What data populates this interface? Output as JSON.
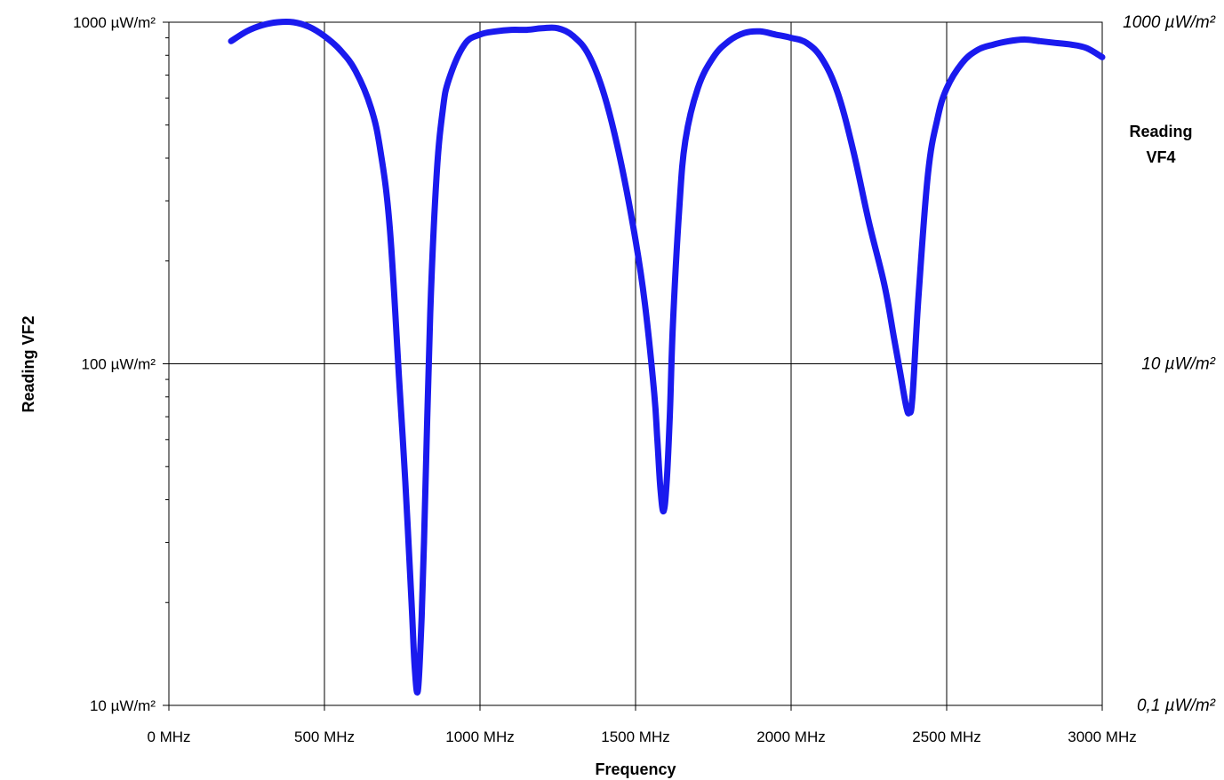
{
  "chart_data": {
    "type": "line",
    "xlabel": "Frequency",
    "ylabel": "Reading VF2",
    "ylabel_right": [
      "Reading",
      "VF4"
    ],
    "xlim": [
      0,
      3000
    ],
    "ylim": [
      10,
      1000
    ],
    "yscale": "log",
    "grid": true,
    "x_ticks": [
      {
        "value": 0,
        "label": "0 MHz"
      },
      {
        "value": 500,
        "label": "500 MHz"
      },
      {
        "value": 1000,
        "label": "1000 MHz"
      },
      {
        "value": 1500,
        "label": "1500 MHz"
      },
      {
        "value": 2000,
        "label": "2000 MHz"
      },
      {
        "value": 2500,
        "label": "2500 MHz"
      },
      {
        "value": 3000,
        "label": "3000 MHz"
      }
    ],
    "y_ticks_left": [
      {
        "value": 1000,
        "label": "1000 µW/m²"
      },
      {
        "value": 100,
        "label": "100 µW/m²"
      },
      {
        "value": 10,
        "label": "10 µW/m²"
      }
    ],
    "y_ticks_right": [
      {
        "value": 1000,
        "label": "1000 µW/m²"
      },
      {
        "value": 100,
        "label": "10 µW/m²"
      },
      {
        "value": 10,
        "label": "0,1 µW/m²"
      }
    ],
    "series_color": "#1a1aee",
    "series": [
      {
        "x": [
          200,
          250,
          300,
          350,
          400,
          450,
          500,
          550,
          600,
          650,
          680,
          710,
          740,
          760,
          780,
          790,
          800,
          810,
          820,
          840,
          860,
          880,
          900,
          950,
          1000,
          1050,
          1100,
          1150,
          1200,
          1250,
          1300,
          1350,
          1400,
          1450,
          1500,
          1530,
          1560,
          1570,
          1580,
          1590,
          1600,
          1610,
          1620,
          1640,
          1660,
          1700,
          1750,
          1800,
          1850,
          1900,
          1950,
          2000,
          2050,
          2100,
          2150,
          2200,
          2250,
          2300,
          2330,
          2350,
          2370,
          2380,
          2390,
          2410,
          2440,
          2470,
          2500,
          2550,
          2600,
          2650,
          2700,
          2750,
          2800,
          2850,
          2900,
          2950,
          3000
        ],
        "y": [
          880,
          940,
          980,
          1000,
          1000,
          970,
          910,
          830,
          720,
          560,
          420,
          250,
          90,
          45,
          20,
          13,
          11,
          16,
          30,
          140,
          350,
          550,
          680,
          860,
          920,
          940,
          950,
          950,
          960,
          960,
          910,
          800,
          610,
          400,
          230,
          150,
          82,
          60,
          43,
          37,
          45,
          70,
          130,
          280,
          450,
          640,
          790,
          880,
          930,
          940,
          920,
          900,
          870,
          780,
          620,
          420,
          260,
          170,
          120,
          95,
          75,
          72,
          80,
          160,
          360,
          520,
          640,
          760,
          830,
          860,
          880,
          890,
          880,
          870,
          860,
          840,
          790
        ]
      }
    ]
  }
}
